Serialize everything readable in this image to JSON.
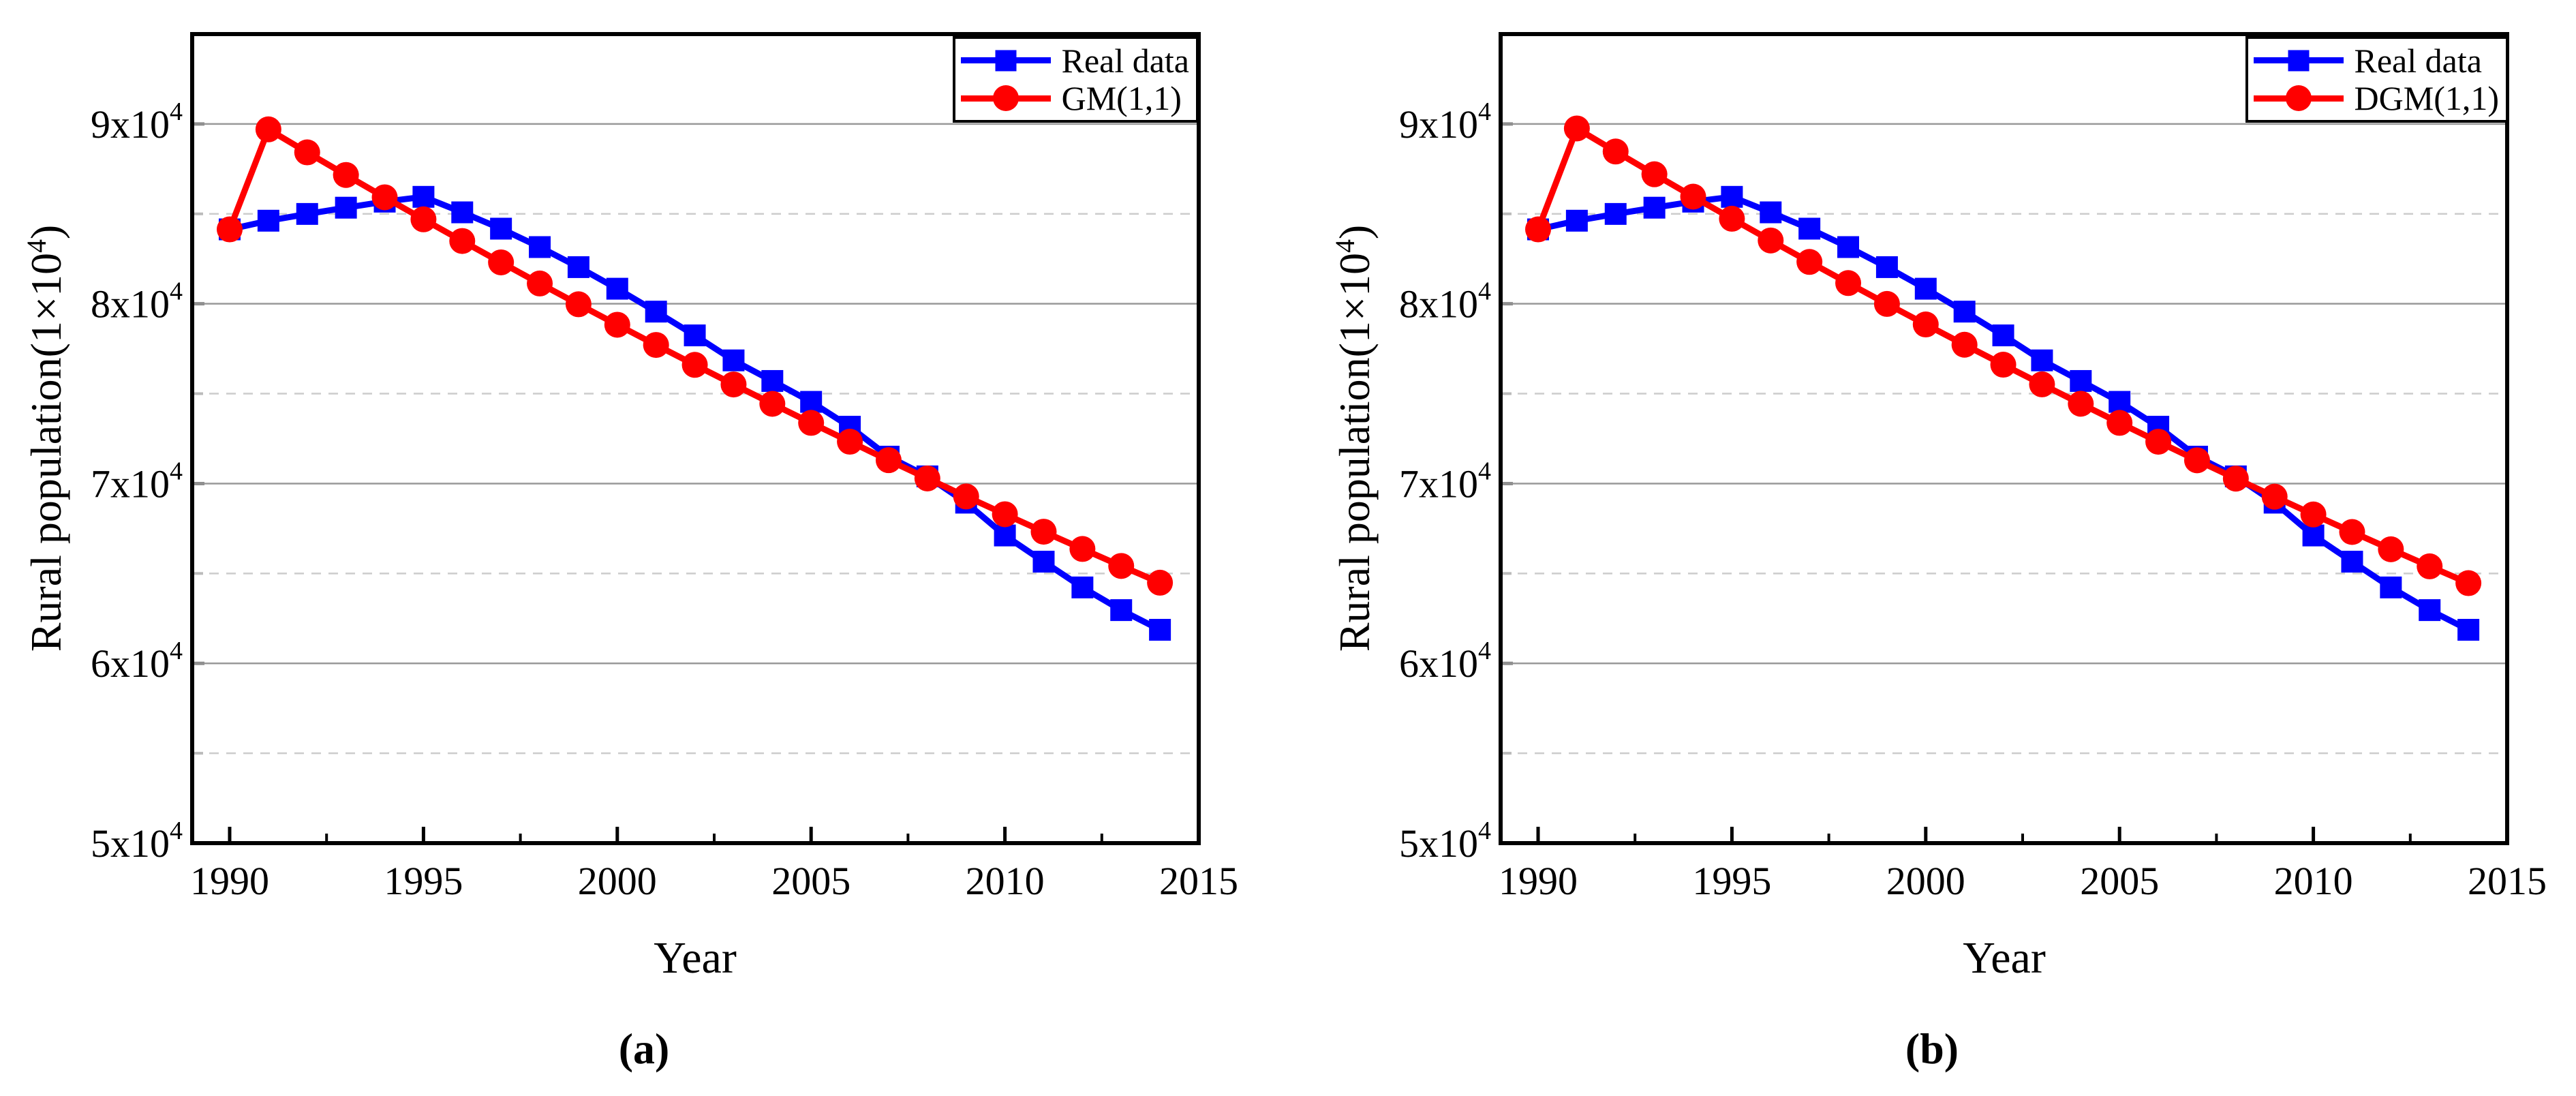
{
  "colors": {
    "real_data": "#0000ff",
    "model": "#ff0000",
    "axis": "#000000",
    "grid_major": "#999999",
    "grid_minor": "#cccccc",
    "tick_stub_major": "#8f8f8f",
    "tick_stub_minor": "#bbbbbb",
    "background": "#ffffff",
    "text": "#000000"
  },
  "chart_data": [
    {
      "type": "line",
      "panel": "a",
      "caption": "(a)",
      "xlabel": "Year",
      "ylabel": "Rural population(1×10⁴)",
      "ylabel_parts": {
        "pre": "Rural population(1×10",
        "sup": "4",
        "post": ")"
      },
      "xlim": [
        1989,
        2015
      ],
      "ylim": [
        50000,
        95000
      ],
      "grid": "horizontal-only",
      "legend_position": "top-right-inside",
      "x_major_ticks": [
        1990,
        1995,
        2000,
        2005,
        2010,
        2015
      ],
      "x_major_tick_labels": [
        "1990",
        "1995",
        "2000",
        "2005",
        "2010",
        "2015"
      ],
      "x_minor_ticks": [
        1992.5,
        1997.5,
        2002.5,
        2007.5,
        2012.5
      ],
      "y_major_ticks": [
        {
          "value": 50000,
          "base": "5x10",
          "sup": "4"
        },
        {
          "value": 60000,
          "base": "6x10",
          "sup": "4"
        },
        {
          "value": 70000,
          "base": "7x10",
          "sup": "4"
        },
        {
          "value": 80000,
          "base": "8x10",
          "sup": "4"
        },
        {
          "value": 90000,
          "base": "9x10",
          "sup": "4"
        }
      ],
      "y_minor_ticks": [
        55000,
        65000,
        75000,
        85000
      ],
      "x": [
        1990,
        1991,
        1992,
        1993,
        1994,
        1995,
        1996,
        1997,
        1998,
        1999,
        2000,
        2001,
        2002,
        2003,
        2004,
        2005,
        2006,
        2007,
        2008,
        2009,
        2010,
        2011,
        2012,
        2013,
        2014
      ],
      "series": [
        {
          "name": "Real data",
          "color": "#0000ff",
          "marker": "square",
          "values": [
            84138,
            84620,
            84996,
            85344,
            85681,
            85947,
            85085,
            84177,
            83153,
            82038,
            80837,
            79563,
            78241,
            76851,
            75705,
            74544,
            73160,
            71496,
            70399,
            68938,
            67113,
            65656,
            64222,
            62961,
            61866
          ]
        },
        {
          "name": "GM(1,1)",
          "color": "#ff0000",
          "marker": "circle",
          "values": [
            84138,
            89700,
            88422,
            87163,
            85921,
            84697,
            83490,
            82301,
            81128,
            79972,
            78833,
            77710,
            76602,
            75511,
            74435,
            73375,
            72329,
            71299,
            70283,
            69281,
            68294,
            67321,
            66362,
            65417,
            64485
          ]
        }
      ]
    },
    {
      "type": "line",
      "panel": "b",
      "caption": "(b)",
      "xlabel": "Year",
      "ylabel": "Rural population(1×10⁴)",
      "ylabel_parts": {
        "pre": "Rural population(1×10",
        "sup": "4",
        "post": ")"
      },
      "xlim": [
        1989,
        2015
      ],
      "ylim": [
        50000,
        95000
      ],
      "grid": "horizontal-only",
      "legend_position": "top-right-inside",
      "x_major_ticks": [
        1990,
        1995,
        2000,
        2005,
        2010,
        2015
      ],
      "x_major_tick_labels": [
        "1990",
        "1995",
        "2000",
        "2005",
        "2010",
        "2015"
      ],
      "x_minor_ticks": [
        1992.5,
        1997.5,
        2002.5,
        2007.5,
        2012.5
      ],
      "y_major_ticks": [
        {
          "value": 50000,
          "base": "5x10",
          "sup": "4"
        },
        {
          "value": 60000,
          "base": "6x10",
          "sup": "4"
        },
        {
          "value": 70000,
          "base": "7x10",
          "sup": "4"
        },
        {
          "value": 80000,
          "base": "8x10",
          "sup": "4"
        },
        {
          "value": 90000,
          "base": "9x10",
          "sup": "4"
        }
      ],
      "y_minor_ticks": [
        55000,
        65000,
        75000,
        85000
      ],
      "x": [
        1990,
        1991,
        1992,
        1993,
        1994,
        1995,
        1996,
        1997,
        1998,
        1999,
        2000,
        2001,
        2002,
        2003,
        2004,
        2005,
        2006,
        2007,
        2008,
        2009,
        2010,
        2011,
        2012,
        2013,
        2014
      ],
      "series": [
        {
          "name": "Real data",
          "color": "#0000ff",
          "marker": "square",
          "values": [
            84138,
            84620,
            84996,
            85344,
            85681,
            85947,
            85085,
            84177,
            83153,
            82038,
            80837,
            79563,
            78241,
            76851,
            75705,
            74544,
            73160,
            71496,
            70399,
            68938,
            67113,
            65656,
            64222,
            62961,
            61866
          ]
        },
        {
          "name": "DGM(1,1)",
          "color": "#ff0000",
          "marker": "circle",
          "values": [
            84138,
            89750,
            88468,
            87204,
            85958,
            84730,
            83520,
            82327,
            81151,
            79991,
            78849,
            77722,
            76612,
            75517,
            74438,
            73375,
            72327,
            71293,
            70275,
            69271,
            68281,
            67306,
            66344,
            65396,
            64462
          ]
        }
      ]
    }
  ]
}
